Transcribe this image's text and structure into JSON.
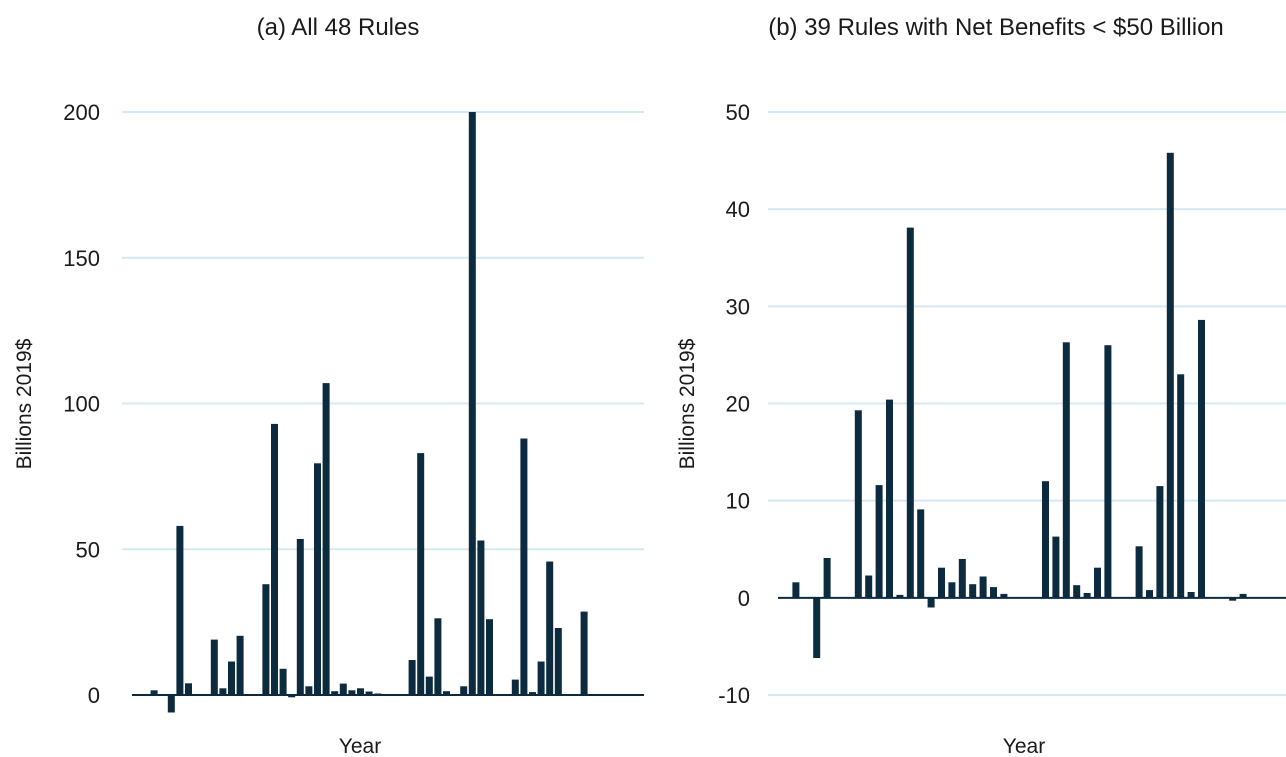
{
  "chart_data": [
    {
      "type": "bar",
      "title": "(a) All 48 Rules",
      "xlabel": "Year",
      "ylabel": "Billions 2019$",
      "ylim": [
        0,
        200
      ],
      "yticks": [
        0,
        50,
        100,
        150,
        200
      ],
      "grid": true,
      "bar_color": "#0d2b3e",
      "grid_color": "#d6e8f3",
      "values": [
        0,
        1.6,
        0,
        -6,
        58,
        4,
        0,
        0,
        19,
        2.3,
        11.5,
        20.3,
        0,
        0,
        38,
        93,
        9,
        -0.8,
        53.5,
        3,
        79.5,
        107,
        1.3,
        3.9,
        1.6,
        2.3,
        1.2,
        0.5,
        0,
        0,
        0,
        12,
        83,
        6.3,
        26.3,
        1.3,
        0,
        3,
        200,
        53,
        26,
        0,
        0,
        5.3,
        88,
        1,
        11.5,
        45.8,
        23,
        0,
        0,
        28.6
      ]
    },
    {
      "type": "bar",
      "title": "(b) 39 Rules with Net Benefits < $50 Billion",
      "xlabel": "Year",
      "ylabel": "Billions 2019$",
      "ylim": [
        -10,
        50
      ],
      "yticks": [
        -10,
        0,
        10,
        20,
        30,
        40,
        50
      ],
      "grid": true,
      "bar_color": "#0d2b3e",
      "grid_color": "#d6e8f3",
      "values": [
        0,
        1.6,
        0,
        -6.2,
        4.1,
        0,
        0,
        19.3,
        2.3,
        11.6,
        20.4,
        0.3,
        38.1,
        9.1,
        -1,
        3.1,
        1.6,
        4,
        1.4,
        2.2,
        1.1,
        0.4,
        0,
        0,
        0,
        12,
        6.3,
        26.3,
        1.3,
        0.5,
        3.1,
        26,
        0,
        0,
        5.3,
        0.8,
        11.5,
        45.8,
        23,
        0.6,
        28.6,
        0,
        0,
        -0.3,
        0.4
      ]
    }
  ]
}
